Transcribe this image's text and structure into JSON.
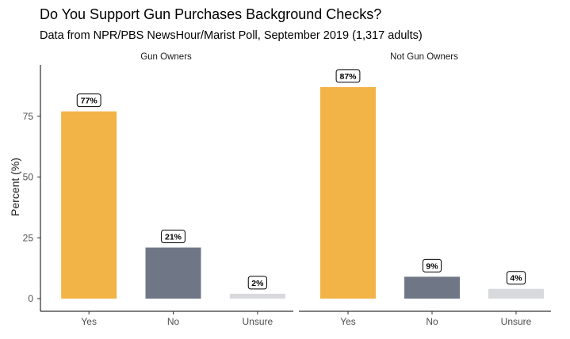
{
  "chart_data": {
    "type": "bar",
    "title": "Do You Support Gun Purchases Background Checks?",
    "subtitle": "Data from NPR/PBS NewsHour/Marist Poll, September 2019 (1,317 adults)",
    "ylabel": "Percent (%)",
    "xlabel": "",
    "ylim": [
      0,
      87
    ],
    "yticks": [
      0,
      25,
      50,
      75
    ],
    "grid": false,
    "categories": [
      "Yes",
      "No",
      "Unsure"
    ],
    "colors": {
      "Yes": "#F2B447",
      "No": "#6F7787",
      "Unsure": "#D8D9DC"
    },
    "facets": [
      {
        "name": "Gun Owners",
        "values": [
          77,
          21,
          2
        ],
        "labels": [
          "77%",
          "21%",
          "2%"
        ]
      },
      {
        "name": "Not Gun Owners",
        "values": [
          87,
          9,
          4
        ],
        "labels": [
          "87%",
          "9%",
          "4%"
        ]
      }
    ]
  }
}
